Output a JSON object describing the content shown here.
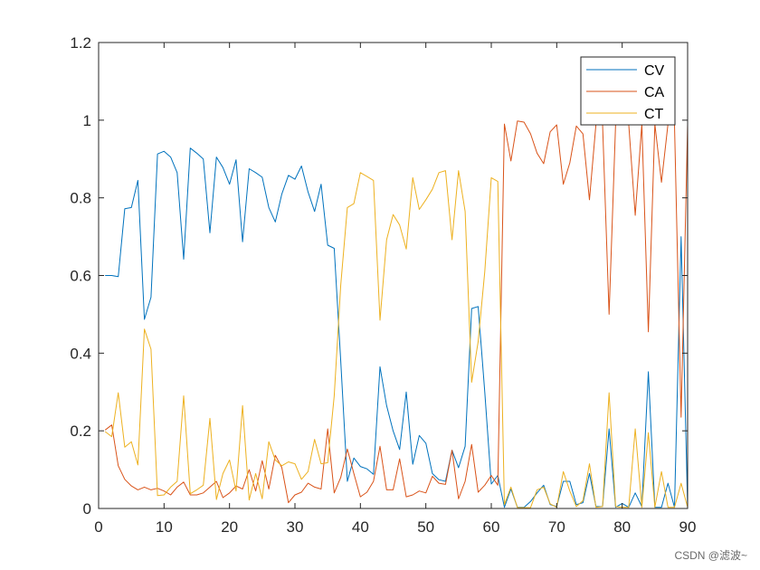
{
  "watermark": "CSDN @滤波~",
  "chart_data": {
    "type": "line",
    "title": "",
    "xlabel": "",
    "ylabel": "",
    "xlim": [
      0,
      90
    ],
    "ylim": [
      0,
      1.2
    ],
    "xticks": [
      0,
      10,
      20,
      30,
      40,
      50,
      60,
      70,
      80,
      90
    ],
    "yticks": [
      0,
      0.2,
      0.4,
      0.6,
      0.8,
      1,
      1.2
    ],
    "ytick_labels": [
      "0",
      "0.2",
      "0.4",
      "0.6",
      "0.8",
      "1",
      "1.2"
    ],
    "grid": false,
    "legend_position": "top-right",
    "x": [
      1,
      2,
      3,
      4,
      5,
      6,
      7,
      8,
      9,
      10,
      11,
      12,
      13,
      14,
      15,
      16,
      17,
      18,
      19,
      20,
      21,
      22,
      23,
      24,
      25,
      26,
      27,
      28,
      29,
      30,
      31,
      32,
      33,
      34,
      35,
      36,
      37,
      38,
      39,
      40,
      41,
      42,
      43,
      44,
      45,
      46,
      47,
      48,
      49,
      50,
      51,
      52,
      53,
      54,
      55,
      56,
      57,
      58,
      59,
      60,
      61,
      62,
      63,
      64,
      65,
      66,
      67,
      68,
      69,
      70,
      71,
      72,
      73,
      74,
      75,
      76,
      77,
      78,
      79,
      80,
      81,
      82,
      83,
      84,
      85,
      86,
      87,
      88,
      89,
      90
    ],
    "series": [
      {
        "name": "CV",
        "color": "#0072BD",
        "values": [
          0.6,
          0.6,
          0.597,
          0.772,
          0.775,
          0.845,
          0.487,
          0.544,
          0.913,
          0.92,
          0.905,
          0.865,
          0.642,
          0.928,
          0.915,
          0.9,
          0.71,
          0.905,
          0.878,
          0.835,
          0.898,
          0.687,
          0.875,
          0.865,
          0.853,
          0.775,
          0.738,
          0.81,
          0.858,
          0.848,
          0.882,
          0.815,
          0.765,
          0.835,
          0.678,
          0.67,
          0.38,
          0.07,
          0.13,
          0.108,
          0.102,
          0.088,
          0.365,
          0.265,
          0.2,
          0.152,
          0.3,
          0.114,
          0.188,
          0.168,
          0.09,
          0.074,
          0.07,
          0.15,
          0.105,
          0.16,
          0.515,
          0.52,
          0.3,
          0.063,
          0.085,
          0.003,
          0.05,
          0.003,
          0.003,
          0.018,
          0.04,
          0.06,
          0.01,
          0.005,
          0.07,
          0.07,
          0.01,
          0.015,
          0.09,
          0.005,
          0.005,
          0.205,
          0.003,
          0.013,
          0.003,
          0.04,
          0.005,
          0.352,
          0.003,
          0.003,
          0.065,
          0.003,
          0.7,
          0.003
        ]
      },
      {
        "name": "CA",
        "color": "#D95319",
        "values": [
          0.202,
          0.215,
          0.11,
          0.075,
          0.058,
          0.048,
          0.055,
          0.048,
          0.052,
          0.045,
          0.035,
          0.055,
          0.068,
          0.035,
          0.035,
          0.04,
          0.055,
          0.07,
          0.028,
          0.04,
          0.058,
          0.05,
          0.1,
          0.045,
          0.123,
          0.05,
          0.137,
          0.105,
          0.015,
          0.035,
          0.042,
          0.065,
          0.055,
          0.05,
          0.205,
          0.04,
          0.08,
          0.153,
          0.09,
          0.03,
          0.042,
          0.07,
          0.16,
          0.048,
          0.048,
          0.128,
          0.03,
          0.035,
          0.045,
          0.04,
          0.083,
          0.065,
          0.062,
          0.15,
          0.025,
          0.07,
          0.165,
          0.042,
          0.06,
          0.085,
          0.06,
          0.99,
          0.895,
          0.998,
          0.995,
          0.965,
          0.915,
          0.888,
          0.97,
          0.988,
          0.835,
          0.89,
          0.985,
          0.965,
          0.795,
          0.99,
          0.99,
          0.5,
          0.99,
          0.988,
          0.99,
          0.755,
          0.99,
          0.455,
          0.99,
          0.84,
          0.99,
          0.99,
          0.235,
          0.99
        ]
      },
      {
        "name": "CT",
        "color": "#EDB120",
        "values": [
          0.198,
          0.185,
          0.298,
          0.158,
          0.172,
          0.112,
          0.462,
          0.41,
          0.033,
          0.035,
          0.055,
          0.07,
          0.29,
          0.038,
          0.048,
          0.06,
          0.232,
          0.023,
          0.09,
          0.125,
          0.045,
          0.265,
          0.022,
          0.09,
          0.025,
          0.172,
          0.125,
          0.11,
          0.12,
          0.115,
          0.075,
          0.095,
          0.178,
          0.115,
          0.118,
          0.29,
          0.575,
          0.775,
          0.785,
          0.865,
          0.855,
          0.845,
          0.485,
          0.692,
          0.757,
          0.73,
          0.668,
          0.852,
          0.77,
          0.795,
          0.822,
          0.865,
          0.87,
          0.692,
          0.87,
          0.765,
          0.325,
          0.43,
          0.61,
          0.852,
          0.842,
          0.01,
          0.055,
          0.002,
          0.002,
          0.002,
          0.048,
          0.055,
          0.012,
          0.003,
          0.095,
          0.045,
          0.005,
          0.02,
          0.115,
          0.003,
          0.005,
          0.298,
          0.005,
          0.003,
          0.003,
          0.205,
          0.003,
          0.195,
          0.003,
          0.095,
          0.003,
          0.003,
          0.065,
          0.003
        ]
      }
    ]
  }
}
